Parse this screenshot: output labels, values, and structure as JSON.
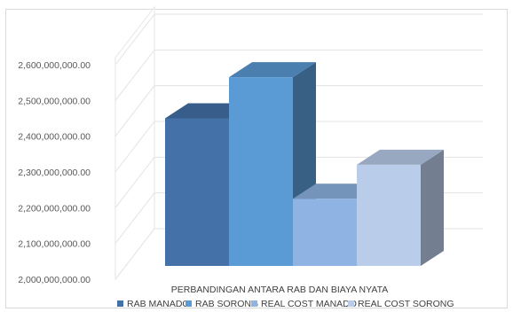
{
  "chart_data": {
    "type": "bar",
    "title": "",
    "xlabel": "PERBANDINGAN ANTARA RAB DAN BIAYA NYATA",
    "ylabel": "",
    "categories": [
      "PERBANDINGAN ANTARA RAB DAN BIAYA NYATA"
    ],
    "ylim": [
      2000000000,
      2600000000
    ],
    "yticks": [
      "2,000,000,000.00",
      "2,100,000,000.00",
      "2,200,000,000.00",
      "2,300,000,000.00",
      "2,400,000,000.00",
      "2,500,000,000.00",
      "2,600,000,000.00"
    ],
    "ytick_values": [
      2000000000,
      2100000000,
      2200000000,
      2300000000,
      2400000000,
      2500000000,
      2600000000
    ],
    "grid": true,
    "legend_position": "bottom",
    "style": "3d-clustered-column",
    "series": [
      {
        "name": "RAB MANADO",
        "values": [
          2450000000
        ],
        "color": "#4472a8"
      },
      {
        "name": "RAB SORONG",
        "values": [
          2565000000
        ],
        "color": "#5b9bd5"
      },
      {
        "name": "REAL COST MANADO",
        "values": [
          2225000000
        ],
        "color": "#8fb4e3"
      },
      {
        "name": "REAL COST SORONG",
        "values": [
          2320000000
        ],
        "color": "#b9cdea"
      }
    ]
  }
}
